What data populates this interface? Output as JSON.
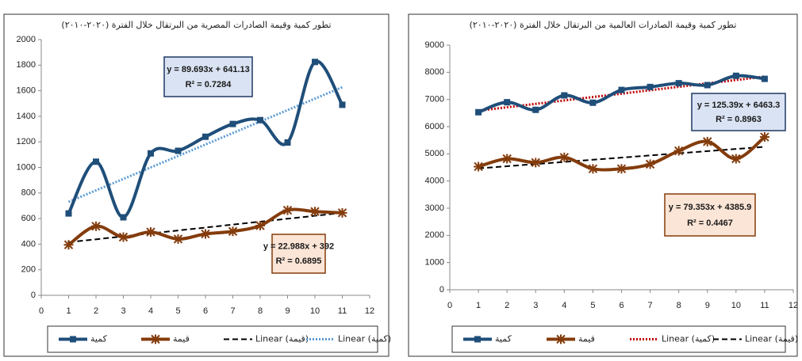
{
  "chart_data": [
    {
      "type": "line",
      "title": "تطور كمية وقيمة الصادرات المصرية من البرتقال خلال الفترة (٢٠٢٠-٢٠١٠)",
      "x": [
        1,
        2,
        3,
        4,
        5,
        6,
        7,
        8,
        9,
        10,
        11
      ],
      "xlim": [
        0,
        12
      ],
      "xticks": [
        0,
        1,
        2,
        3,
        4,
        5,
        6,
        7,
        8,
        9,
        10,
        11,
        12
      ],
      "ylim": [
        0,
        2000
      ],
      "yticks": [
        0,
        200,
        400,
        600,
        800,
        1000,
        1200,
        1400,
        1600,
        1800,
        2000
      ],
      "smooth": true,
      "grid": false,
      "series": [
        {
          "name": "كمية",
          "color": "#1f4e79",
          "marker": "square",
          "values": [
            640,
            1045,
            610,
            1110,
            1130,
            1240,
            1340,
            1370,
            1195,
            1825,
            1490
          ]
        },
        {
          "name": "قيمة",
          "color": "#843c0c",
          "marker": "star",
          "values": [
            395,
            540,
            455,
            495,
            440,
            480,
            500,
            545,
            665,
            655,
            645
          ]
        }
      ],
      "trendlines": [
        {
          "name": "Linear (قيمة)",
          "series": 1,
          "slope": 22.988,
          "intercept": 392,
          "equation": "y = 22.988x + 392",
          "r2": "R² = 0.6895",
          "color": "#000000",
          "style": "dashed"
        },
        {
          "name": "Linear (كمية)",
          "series": 0,
          "slope": 89.693,
          "intercept": 641.13,
          "equation": "y = 89.693x + 641.13",
          "r2": "R² = 0.7284",
          "color": "#5b9bd5",
          "style": "dotted"
        }
      ]
    },
    {
      "type": "line",
      "title": "تطور كمية وقيمة الصادرات العالمية من البرتقال خلال الفترة (٢٠٢٠-٢٠١٠)",
      "x": [
        1,
        2,
        3,
        4,
        5,
        6,
        7,
        8,
        9,
        10,
        11
      ],
      "xlim": [
        0,
        12
      ],
      "xticks": [
        0,
        1,
        2,
        3,
        4,
        5,
        6,
        7,
        8,
        9,
        10,
        11,
        12
      ],
      "ylim": [
        0,
        9000
      ],
      "yticks": [
        0,
        1000,
        2000,
        3000,
        4000,
        5000,
        6000,
        7000,
        8000,
        9000
      ],
      "smooth": true,
      "grid": false,
      "series": [
        {
          "name": "كمية",
          "color": "#1f4e79",
          "marker": "square",
          "values": [
            6530,
            6900,
            6620,
            7150,
            6880,
            7350,
            7460,
            7600,
            7530,
            7870,
            7760
          ]
        },
        {
          "name": "قيمة",
          "color": "#843c0c",
          "marker": "star",
          "values": [
            4530,
            4820,
            4680,
            4870,
            4450,
            4450,
            4620,
            5110,
            5450,
            4820,
            5620
          ]
        }
      ],
      "trendlines": [
        {
          "name": "Linear (كمية)",
          "series": 0,
          "slope": 125.39,
          "intercept": 6463.3,
          "equation": "y = 125.39x + 6463.3",
          "r2": "R² = 0.8963",
          "color": "#c00000",
          "style": "dotted"
        },
        {
          "name": "Linear (قيمة)",
          "series": 1,
          "slope": 79.353,
          "intercept": 4385.9,
          "equation": "y = 79.353x + 4385.9",
          "r2": "R² = 0.4467",
          "color": "#000000",
          "style": "dashed"
        }
      ]
    }
  ]
}
